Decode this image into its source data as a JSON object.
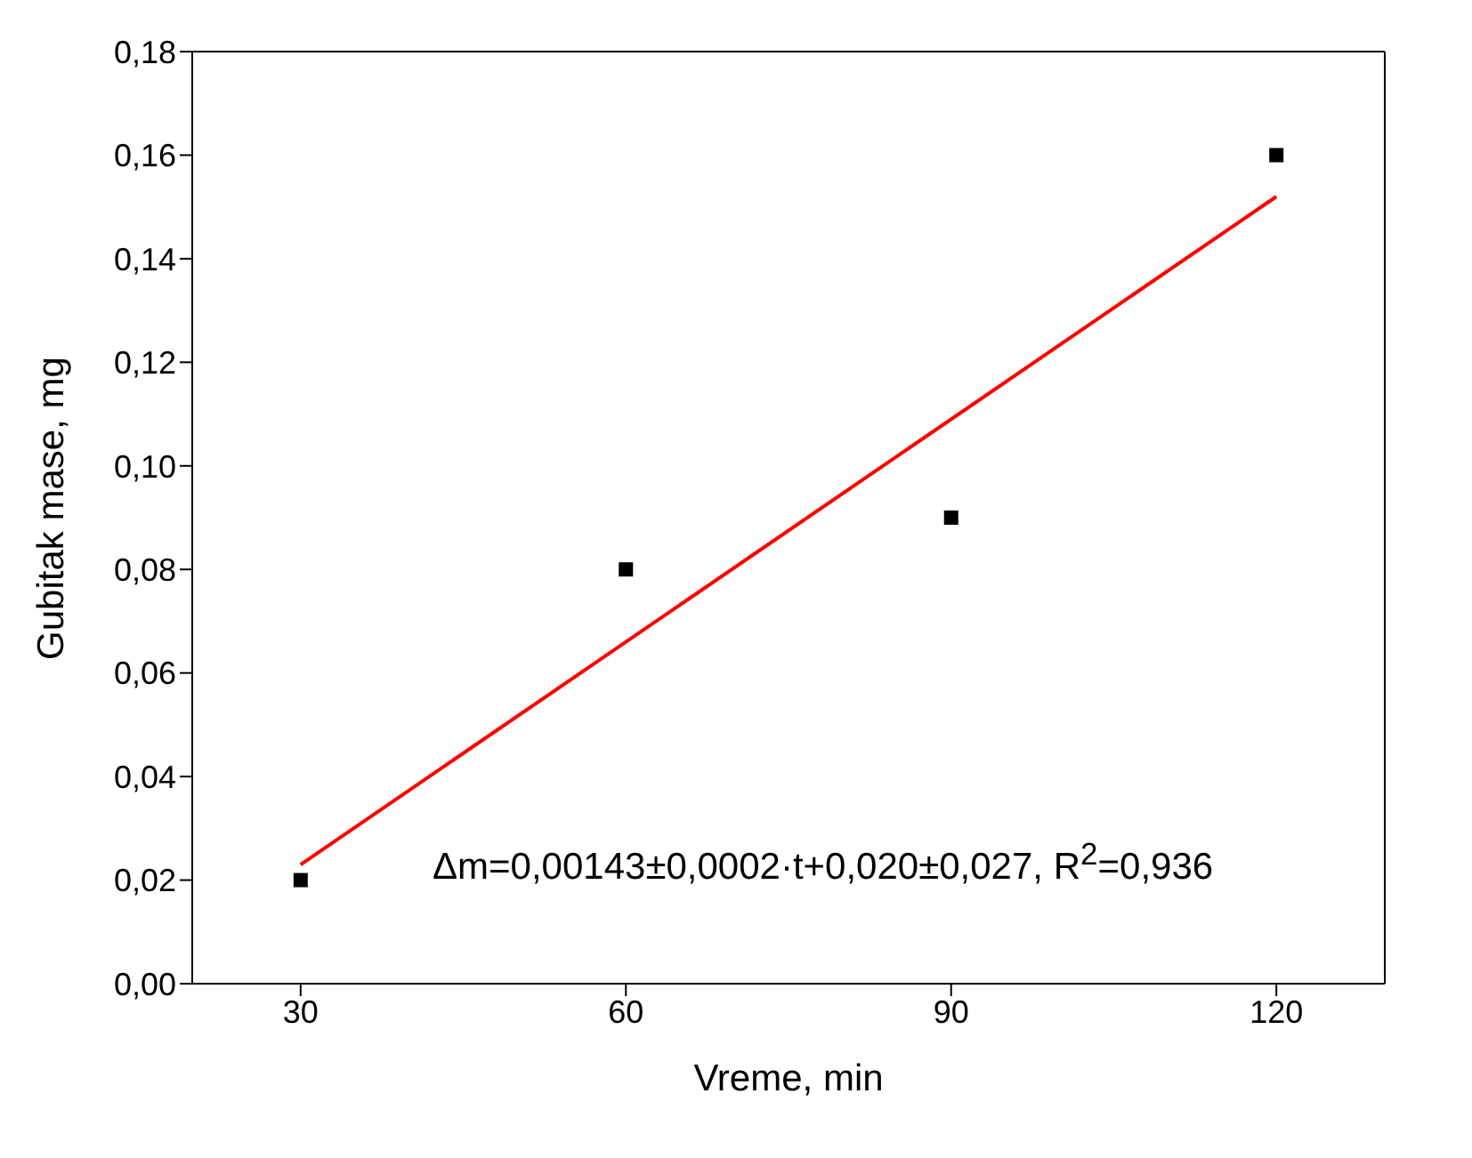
{
  "chart_data": {
    "type": "scatter",
    "xlabel": "Vreme, min",
    "ylabel": "Gubitak mase, mg",
    "xlim": [
      20,
      130
    ],
    "xticks": [
      30,
      60,
      90,
      120
    ],
    "ylim": [
      0,
      0.18
    ],
    "yticks": [
      {
        "value": 0,
        "label": "0,00"
      },
      {
        "value": 0.02,
        "label": "0,02"
      },
      {
        "value": 0.04,
        "label": "0,04"
      },
      {
        "value": 0.06,
        "label": "0,06"
      },
      {
        "value": 0.08,
        "label": "0,08"
      },
      {
        "value": 0.1,
        "label": "0,10"
      },
      {
        "value": 0.12,
        "label": "0,12"
      },
      {
        "value": 0.14,
        "label": "0,14"
      },
      {
        "value": 0.16,
        "label": "0,16"
      },
      {
        "value": 0.18,
        "label": "0,18"
      }
    ],
    "series": [
      {
        "marker": "square",
        "color": "#000000",
        "x": [
          30,
          60,
          90,
          120
        ],
        "values": [
          0.02,
          0.08,
          0.09,
          0.16
        ]
      },
      {
        "type": "line",
        "marker": "none",
        "color": "#ff0000",
        "x": [
          30,
          120
        ],
        "values": [
          0.023,
          0.152
        ]
      }
    ],
    "annotations": [
      "Δm=0,00143±0,0002·t+0,020±0,027, R$^{2}$=0,936"
    ]
  }
}
